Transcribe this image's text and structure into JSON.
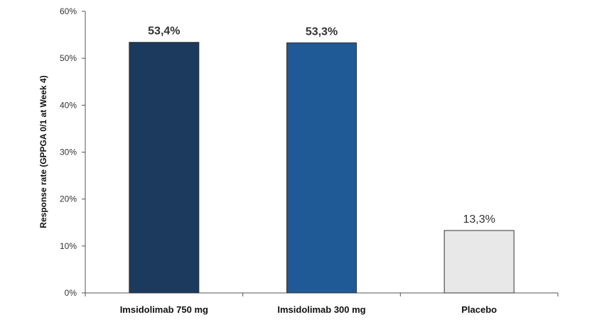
{
  "chart_data": {
    "type": "bar",
    "title": "",
    "xlabel": "",
    "ylabel": "Response rate (GPPGA 0/1 at Week 4)",
    "ylim": [
      0,
      60
    ],
    "yticks": [
      "0%",
      "10%",
      "20%",
      "30%",
      "40%",
      "50%",
      "60%"
    ],
    "categories": [
      "Imsidolimab 750 mg",
      "Imsidolimab 300 mg",
      "Placebo"
    ],
    "values": [
      53.4,
      53.3,
      13.3
    ],
    "value_labels": [
      "53,4%",
      "53,3%",
      "13,3%"
    ],
    "value_label_bold": [
      true,
      true,
      false
    ],
    "colors": [
      "#1b3a5e",
      "#1f5a96",
      "#e8e8e8"
    ],
    "grid": false,
    "legend": "none"
  }
}
